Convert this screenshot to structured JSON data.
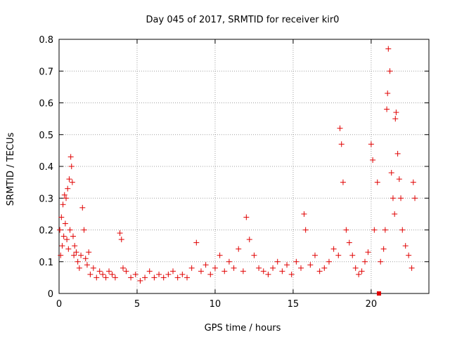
{
  "chart_data": {
    "type": "scatter",
    "title": "Day 045 of 2017, SRMTID for receiver kir0",
    "xlabel": "GPS time / hours",
    "ylabel": "SRMTID / TECUs",
    "xlim": [
      0,
      23.7
    ],
    "ylim": [
      0,
      0.8
    ],
    "xticks": [
      0,
      5,
      10,
      15,
      20
    ],
    "yticks": [
      0,
      0.1,
      0.2,
      0.3,
      0.4,
      0.5,
      0.6,
      0.7,
      0.8
    ],
    "grid": true,
    "marker": "+",
    "color": "#e00000",
    "series": [
      {
        "name": "SRMTID",
        "x": [
          0.05,
          0.1,
          0.15,
          0.2,
          0.25,
          0.3,
          0.35,
          0.4,
          0.45,
          0.5,
          0.55,
          0.6,
          0.65,
          0.7,
          0.75,
          0.8,
          0.85,
          0.9,
          0.95,
          1.0,
          1.1,
          1.2,
          1.3,
          1.4,
          1.5,
          1.6,
          1.7,
          1.8,
          1.9,
          2.0,
          2.2,
          2.4,
          2.6,
          2.8,
          3.0,
          3.2,
          3.4,
          3.6,
          3.9,
          4.0,
          4.1,
          4.3,
          4.6,
          4.9,
          5.2,
          5.5,
          5.8,
          6.1,
          6.4,
          6.7,
          7.0,
          7.3,
          7.6,
          7.9,
          8.2,
          8.5,
          8.8,
          9.1,
          9.4,
          9.7,
          10.0,
          10.3,
          10.6,
          10.9,
          11.2,
          11.5,
          11.8,
          12.0,
          12.2,
          12.5,
          12.8,
          13.1,
          13.4,
          13.7,
          14.0,
          14.3,
          14.6,
          14.9,
          15.2,
          15.5,
          15.7,
          15.8,
          16.1,
          16.4,
          16.7,
          17.0,
          17.3,
          17.6,
          17.9,
          18.0,
          18.1,
          18.2,
          18.4,
          18.6,
          18.8,
          19.0,
          19.2,
          19.4,
          19.6,
          19.8,
          20.0,
          20.1,
          20.2,
          20.4,
          20.6,
          20.8,
          20.9,
          21.0,
          21.05,
          21.1,
          21.2,
          21.3,
          21.4,
          21.5,
          21.55,
          21.6,
          21.7,
          21.8,
          21.9,
          22.0,
          22.2,
          22.4,
          22.6,
          22.7,
          22.8
        ],
        "y": [
          0.2,
          0.12,
          0.24,
          0.15,
          0.28,
          0.18,
          0.31,
          0.22,
          0.3,
          0.17,
          0.33,
          0.14,
          0.36,
          0.2,
          0.43,
          0.4,
          0.35,
          0.18,
          0.12,
          0.15,
          0.13,
          0.1,
          0.08,
          0.12,
          0.27,
          0.2,
          0.11,
          0.09,
          0.13,
          0.06,
          0.08,
          0.05,
          0.07,
          0.06,
          0.05,
          0.07,
          0.06,
          0.05,
          0.19,
          0.17,
          0.08,
          0.07,
          0.05,
          0.06,
          0.04,
          0.05,
          0.07,
          0.05,
          0.06,
          0.05,
          0.06,
          0.07,
          0.05,
          0.06,
          0.05,
          0.08,
          0.16,
          0.07,
          0.09,
          0.06,
          0.08,
          0.12,
          0.07,
          0.1,
          0.08,
          0.14,
          0.07,
          0.24,
          0.17,
          0.12,
          0.08,
          0.07,
          0.06,
          0.08,
          0.1,
          0.07,
          0.09,
          0.06,
          0.1,
          0.08,
          0.25,
          0.2,
          0.09,
          0.12,
          0.07,
          0.08,
          0.1,
          0.14,
          0.12,
          0.52,
          0.47,
          0.35,
          0.2,
          0.16,
          0.12,
          0.08,
          0.06,
          0.07,
          0.1,
          0.13,
          0.47,
          0.42,
          0.2,
          0.35,
          0.1,
          0.14,
          0.2,
          0.58,
          0.63,
          0.77,
          0.7,
          0.38,
          0.3,
          0.25,
          0.55,
          0.57,
          0.44,
          0.36,
          0.3,
          0.2,
          0.15,
          0.12,
          0.08,
          0.35,
          0.3
        ]
      }
    ],
    "zero_marker": {
      "x": 20.5,
      "y": 0
    }
  }
}
